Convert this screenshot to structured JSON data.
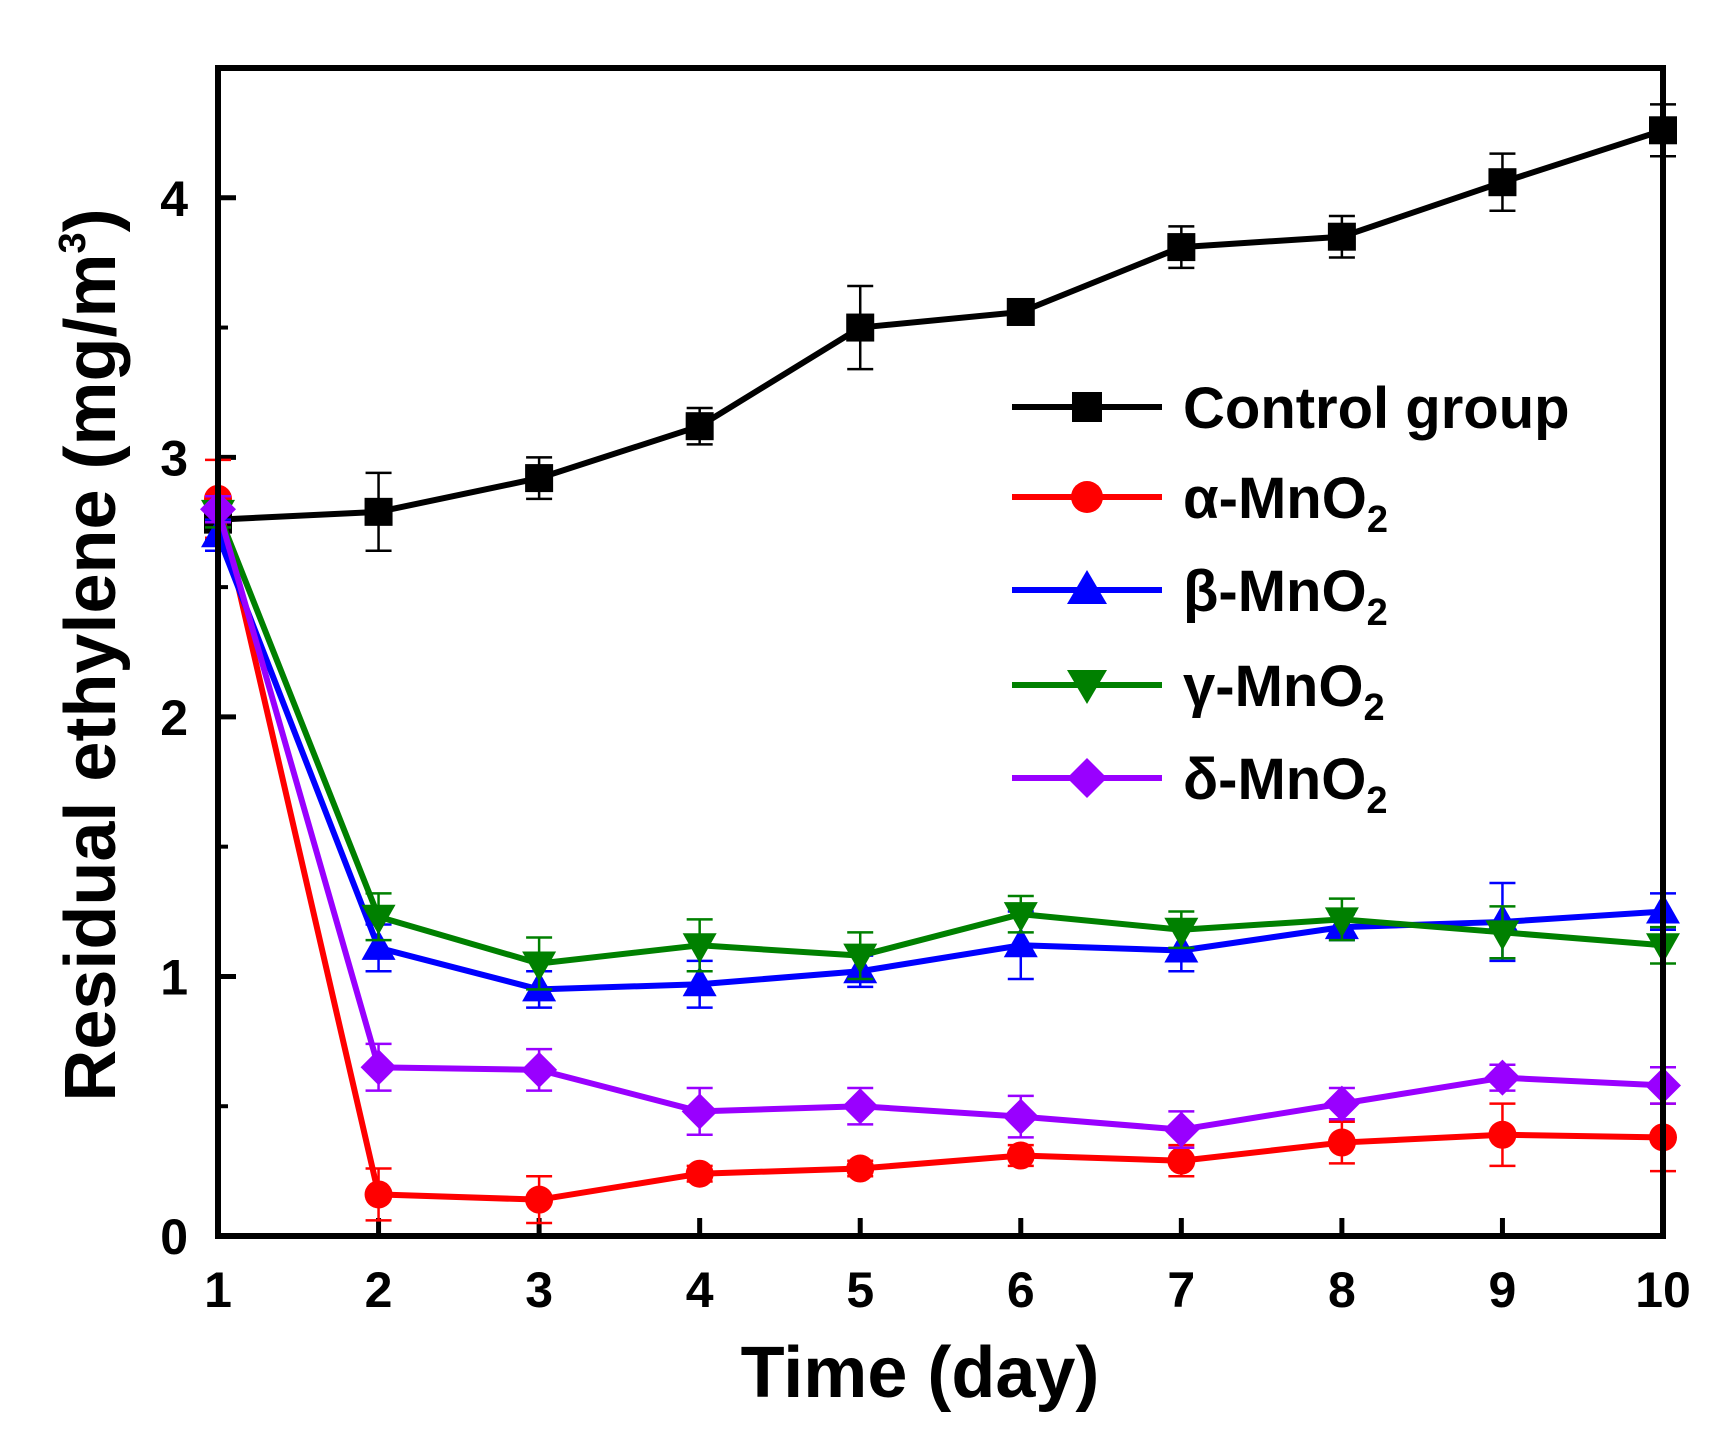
{
  "chart_data": {
    "type": "line",
    "title": "",
    "xlabel": "Time (day)",
    "ylabel": {
      "main": "Residual ethylene (mg/m",
      "superscript": "3",
      "end": ")"
    },
    "xlim": [
      1,
      10
    ],
    "ylim": [
      0,
      4.5
    ],
    "grid": false,
    "legend_position": "center-right",
    "x_ticks": [
      "1",
      "2",
      "3",
      "4",
      "5",
      "6",
      "7",
      "8",
      "9",
      "10"
    ],
    "y_ticks": [
      "0",
      "1",
      "2",
      "3",
      "4"
    ],
    "x": [
      1,
      2,
      3,
      4,
      5,
      6,
      7,
      8,
      9,
      10
    ],
    "series": [
      {
        "name": "Control group",
        "label": {
          "prefix": "Control group",
          "subscript": ""
        },
        "color": "#000000",
        "marker": "square",
        "values": [
          2.76,
          2.79,
          2.92,
          3.12,
          3.5,
          3.56,
          3.81,
          3.85,
          4.06,
          4.26
        ],
        "errors": [
          0.08,
          0.15,
          0.08,
          0.07,
          0.16,
          0.04,
          0.08,
          0.08,
          0.11,
          0.1
        ]
      },
      {
        "name": "α-MnO2",
        "label": {
          "prefix": "α-MnO",
          "subscript": "2"
        },
        "color": "#ff0000",
        "marker": "circle",
        "values": [
          2.84,
          0.16,
          0.14,
          0.24,
          0.26,
          0.31,
          0.29,
          0.36,
          0.39,
          0.38
        ],
        "errors": [
          0.15,
          0.1,
          0.09,
          0.03,
          0.03,
          0.04,
          0.06,
          0.08,
          0.12,
          0.13
        ]
      },
      {
        "name": "β-MnO2",
        "label": {
          "prefix": "β-MnO",
          "subscript": "2"
        },
        "color": "#0000ff",
        "marker": "triangle-up",
        "values": [
          2.7,
          1.11,
          0.95,
          0.97,
          1.02,
          1.12,
          1.1,
          1.19,
          1.21,
          1.25
        ],
        "errors": [
          0.06,
          0.09,
          0.07,
          0.09,
          0.06,
          0.13,
          0.08,
          0.05,
          0.15,
          0.07
        ]
      },
      {
        "name": "γ-MnO2",
        "label": {
          "prefix": "γ-MnO",
          "subscript": "2"
        },
        "color": "#008000",
        "marker": "triangle-down",
        "values": [
          2.79,
          1.23,
          1.05,
          1.12,
          1.08,
          1.24,
          1.18,
          1.22,
          1.17,
          1.12
        ],
        "errors": [
          0.06,
          0.09,
          0.1,
          0.1,
          0.09,
          0.07,
          0.07,
          0.08,
          0.1,
          0.07
        ]
      },
      {
        "name": "δ-MnO2",
        "label": {
          "prefix": "δ-MnO",
          "subscript": "2"
        },
        "color": "#9900ff",
        "marker": "diamond",
        "values": [
          2.8,
          0.65,
          0.64,
          0.48,
          0.5,
          0.46,
          0.41,
          0.51,
          0.61,
          0.58
        ],
        "errors": [
          0.05,
          0.09,
          0.08,
          0.09,
          0.07,
          0.08,
          0.07,
          0.06,
          0.05,
          0.07
        ]
      }
    ]
  }
}
